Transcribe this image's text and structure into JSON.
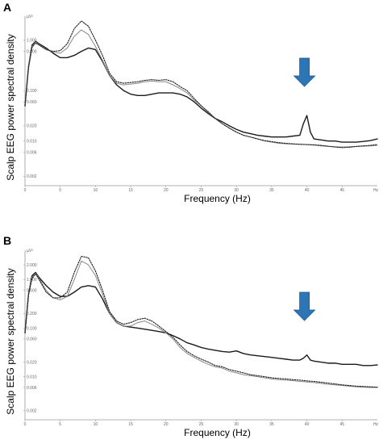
{
  "chart_data": [
    {
      "type": "line",
      "panel": "A",
      "ylabel": "Scalp EEG power spectral density",
      "yunit": "µV²",
      "xlabel": "Frequency (Hz)",
      "xunit": "Hz",
      "xlim": [
        0,
        50
      ],
      "ylim": [
        0.0013,
        3.0
      ],
      "yscale": "log",
      "xticks": [
        0,
        5,
        10,
        15,
        20,
        25,
        30,
        35,
        40,
        45
      ],
      "yticks": [
        {
          "value": 1.0,
          "label": "1.000"
        },
        {
          "value": 0.6,
          "label": "0.600"
        },
        {
          "value": 0.1,
          "label": "0.100"
        },
        {
          "value": 0.06,
          "label": "0.060"
        },
        {
          "value": 0.02,
          "label": "0.020"
        },
        {
          "value": 0.01,
          "label": "0.010"
        },
        {
          "value": 0.006,
          "label": "0.006"
        },
        {
          "value": 0.002,
          "label": "0.002"
        }
      ],
      "annotation": {
        "type": "arrow",
        "x": 40,
        "color": "#2E75B6"
      },
      "series": [
        {
          "style": "solid-black",
          "x": [
            0,
            0.5,
            1,
            1.5,
            2,
            3,
            4,
            5,
            6,
            7,
            8,
            9,
            10,
            11,
            12,
            13,
            14,
            15,
            16,
            17,
            18,
            19,
            20,
            21,
            22,
            23,
            24,
            25,
            26,
            27,
            28,
            29,
            30,
            31,
            32,
            33,
            34,
            35,
            36,
            37,
            38,
            39,
            39.5,
            40,
            40.5,
            41,
            42,
            43,
            44,
            45,
            46,
            47,
            48,
            49,
            50
          ],
          "y": [
            0.05,
            0.3,
            0.8,
            0.95,
            0.85,
            0.7,
            0.55,
            0.45,
            0.45,
            0.5,
            0.6,
            0.7,
            0.65,
            0.38,
            0.2,
            0.13,
            0.1,
            0.085,
            0.08,
            0.08,
            0.085,
            0.09,
            0.09,
            0.09,
            0.085,
            0.075,
            0.06,
            0.045,
            0.035,
            0.028,
            0.024,
            0.02,
            0.017,
            0.015,
            0.014,
            0.013,
            0.0125,
            0.012,
            0.012,
            0.012,
            0.0125,
            0.013,
            0.022,
            0.032,
            0.015,
            0.011,
            0.0105,
            0.01,
            0.01,
            0.0095,
            0.0095,
            0.0095,
            0.0098,
            0.0102,
            0.011
          ]
        },
        {
          "style": "solid-gray",
          "x": [
            0,
            0.5,
            1,
            1.5,
            2,
            3,
            4,
            5,
            6,
            7,
            8,
            9,
            10,
            11,
            12,
            13,
            14,
            15,
            16,
            17,
            18,
            19,
            20,
            21,
            22,
            23,
            24,
            25,
            26,
            27,
            28,
            29,
            30,
            31,
            32,
            33,
            34,
            35,
            36,
            37,
            38,
            39,
            40,
            41,
            42,
            43,
            44,
            45,
            46,
            47,
            48,
            49,
            50
          ],
          "y": [
            0.05,
            0.3,
            0.75,
            0.92,
            0.82,
            0.66,
            0.58,
            0.55,
            0.7,
            1.2,
            1.6,
            1.3,
            0.75,
            0.4,
            0.2,
            0.14,
            0.13,
            0.135,
            0.14,
            0.15,
            0.155,
            0.15,
            0.15,
            0.13,
            0.11,
            0.09,
            0.065,
            0.05,
            0.037,
            0.028,
            0.022,
            0.018,
            0.015,
            0.013,
            0.012,
            0.011,
            0.01,
            0.0095,
            0.009,
            0.0088,
            0.0087,
            0.0086,
            0.0085,
            0.0083,
            0.008,
            0.0078,
            0.0077,
            0.0076,
            0.0077,
            0.0078,
            0.0079,
            0.008,
            0.0082
          ]
        },
        {
          "style": "dotted-black",
          "x": [
            0,
            0.5,
            1,
            1.5,
            2,
            3,
            4,
            5,
            6,
            7,
            8,
            9,
            10,
            11,
            12,
            13,
            14,
            15,
            16,
            17,
            18,
            19,
            20,
            21,
            22,
            23,
            24,
            25,
            26,
            27,
            28,
            29,
            30,
            31,
            32,
            33,
            34,
            35,
            36,
            37,
            38,
            39,
            40,
            41,
            42,
            43,
            44,
            45,
            46,
            47,
            48,
            49,
            50
          ],
          "y": [
            0.05,
            0.28,
            0.72,
            0.88,
            0.8,
            0.65,
            0.6,
            0.62,
            0.85,
            1.7,
            2.4,
            1.9,
            1.0,
            0.5,
            0.22,
            0.15,
            0.14,
            0.145,
            0.15,
            0.16,
            0.165,
            0.16,
            0.165,
            0.15,
            0.12,
            0.1,
            0.07,
            0.05,
            0.038,
            0.028,
            0.022,
            0.018,
            0.015,
            0.013,
            0.012,
            0.011,
            0.0102,
            0.0097,
            0.0093,
            0.009,
            0.0088,
            0.0086,
            0.0085,
            0.0084,
            0.0082,
            0.0079,
            0.0076,
            0.0074,
            0.0075,
            0.0078,
            0.008,
            0.0082,
            0.0085
          ]
        }
      ]
    },
    {
      "type": "line",
      "panel": "B",
      "ylabel": "Scalp EEG power spectral density",
      "yunit": "µV²",
      "xlabel": "Frequency (Hz)",
      "xunit": "Hz",
      "xlim": [
        0,
        50
      ],
      "ylim": [
        0.0013,
        4.0
      ],
      "yscale": "log",
      "xticks": [
        0,
        5,
        10,
        15,
        20,
        25,
        30,
        35,
        40,
        45
      ],
      "yticks": [
        {
          "value": 2.0,
          "label": "2.000"
        },
        {
          "value": 1.0,
          "label": "1.000"
        },
        {
          "value": 0.6,
          "label": "0.600"
        },
        {
          "value": 0.2,
          "label": "0.200"
        },
        {
          "value": 0.1,
          "label": "0.100"
        },
        {
          "value": 0.06,
          "label": "0.060"
        },
        {
          "value": 0.02,
          "label": "0.020"
        },
        {
          "value": 0.01,
          "label": "0.010"
        },
        {
          "value": 0.006,
          "label": "0.006"
        },
        {
          "value": 0.002,
          "label": "0.002"
        }
      ],
      "annotation": {
        "type": "arrow",
        "x": 40,
        "color": "#2E75B6"
      },
      "series": [
        {
          "style": "solid-black",
          "x": [
            0,
            0.5,
            1,
            1.5,
            2,
            3,
            4,
            5,
            6,
            7,
            8,
            9,
            10,
            11,
            12,
            13,
            14,
            15,
            16,
            17,
            18,
            19,
            20,
            21,
            22,
            23,
            24,
            25,
            26,
            27,
            28,
            29,
            30,
            31,
            32,
            33,
            34,
            35,
            36,
            37,
            38,
            39,
            39.5,
            40,
            40.5,
            41,
            42,
            43,
            44,
            45,
            46,
            47,
            48,
            49,
            50
          ],
          "y": [
            0.08,
            0.5,
            1.2,
            1.4,
            1.1,
            0.75,
            0.55,
            0.45,
            0.45,
            0.55,
            0.7,
            0.75,
            0.7,
            0.4,
            0.2,
            0.13,
            0.11,
            0.105,
            0.1,
            0.095,
            0.09,
            0.085,
            0.08,
            0.07,
            0.06,
            0.05,
            0.045,
            0.04,
            0.037,
            0.035,
            0.033,
            0.032,
            0.034,
            0.03,
            0.028,
            0.027,
            0.026,
            0.025,
            0.024,
            0.023,
            0.022,
            0.022,
            0.024,
            0.028,
            0.022,
            0.021,
            0.02,
            0.019,
            0.019,
            0.018,
            0.018,
            0.018,
            0.017,
            0.017,
            0.0175
          ]
        },
        {
          "style": "solid-gray",
          "x": [
            0,
            0.5,
            1,
            1.5,
            2,
            3,
            4,
            5,
            6,
            7,
            8,
            9,
            10,
            11,
            12,
            13,
            14,
            15,
            16,
            17,
            18,
            19,
            20,
            21,
            22,
            23,
            24,
            25,
            26,
            27,
            28,
            29,
            30,
            31,
            32,
            33,
            34,
            35,
            36,
            37,
            38,
            39,
            40,
            41,
            42,
            43,
            44,
            45,
            46,
            47,
            48,
            49,
            50
          ],
          "y": [
            0.08,
            0.5,
            1.1,
            1.35,
            1.05,
            0.6,
            0.42,
            0.38,
            0.45,
            1.0,
            2.4,
            2.0,
            1.2,
            0.5,
            0.2,
            0.13,
            0.11,
            0.11,
            0.13,
            0.14,
            0.12,
            0.1,
            0.08,
            0.06,
            0.04,
            0.03,
            0.025,
            0.021,
            0.018,
            0.016,
            0.015,
            0.013,
            0.012,
            0.011,
            0.0105,
            0.01,
            0.0095,
            0.009,
            0.0087,
            0.0085,
            0.0083,
            0.008,
            0.0078,
            0.0076,
            0.0073,
            0.007,
            0.0068,
            0.0066,
            0.0064,
            0.0062,
            0.0061,
            0.006,
            0.006
          ]
        },
        {
          "style": "dotted-black",
          "x": [
            0,
            0.5,
            1,
            1.5,
            2,
            3,
            4,
            5,
            6,
            7,
            8,
            9,
            10,
            11,
            12,
            13,
            14,
            15,
            16,
            17,
            18,
            19,
            20,
            21,
            22,
            23,
            24,
            25,
            26,
            27,
            28,
            29,
            30,
            31,
            32,
            33,
            34,
            35,
            36,
            37,
            38,
            39,
            40,
            41,
            42,
            43,
            44,
            45,
            46,
            47,
            48,
            49,
            50
          ],
          "y": [
            0.08,
            0.48,
            1.05,
            1.3,
            1.0,
            0.55,
            0.42,
            0.42,
            0.55,
            1.4,
            3.0,
            2.8,
            1.5,
            0.6,
            0.22,
            0.14,
            0.12,
            0.13,
            0.15,
            0.16,
            0.14,
            0.11,
            0.085,
            0.065,
            0.045,
            0.033,
            0.027,
            0.023,
            0.02,
            0.017,
            0.016,
            0.014,
            0.013,
            0.012,
            0.011,
            0.0105,
            0.01,
            0.0095,
            0.0092,
            0.009,
            0.0087,
            0.0085,
            0.0082,
            0.008,
            0.0077,
            0.0074,
            0.0071,
            0.0068,
            0.0066,
            0.0064,
            0.0063,
            0.0062,
            0.0061
          ]
        }
      ]
    }
  ]
}
